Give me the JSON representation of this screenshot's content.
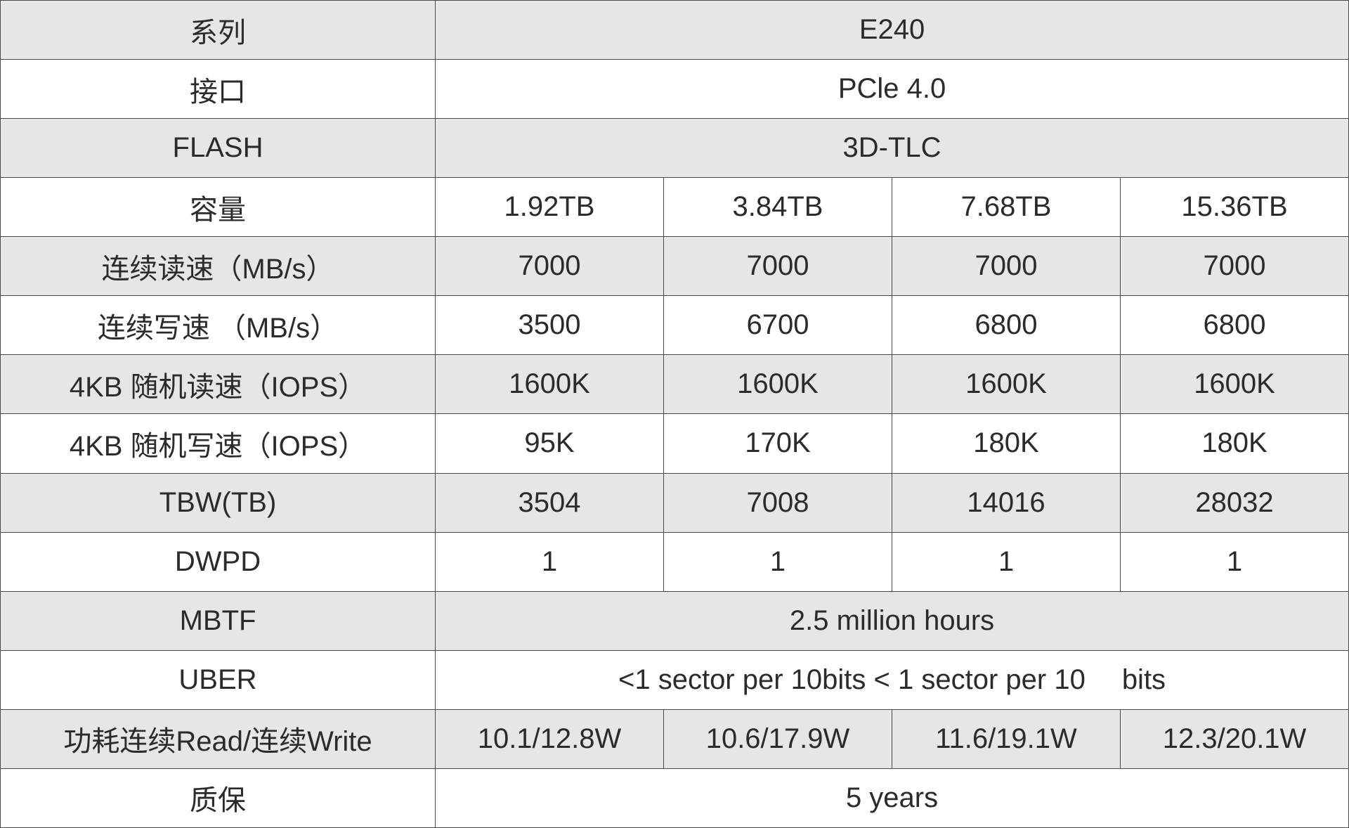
{
  "specs": {
    "series": {
      "label": "系列",
      "value": "E240"
    },
    "interface": {
      "label": "接口",
      "value": "PCle 4.0"
    },
    "flash": {
      "label": "FLASH",
      "value": "3D-TLC"
    },
    "capacity": {
      "label": "容量",
      "values": [
        "1.92TB",
        "3.84TB",
        "7.68TB",
        "15.36TB"
      ]
    },
    "seq_read": {
      "label": "连续读速（MB/s）",
      "values": [
        "7000",
        "7000",
        "7000",
        "7000"
      ]
    },
    "seq_write": {
      "label": "连续写速 （MB/s）",
      "values": [
        "3500",
        "6700",
        "6800",
        "6800"
      ]
    },
    "rand_read": {
      "label": "4KB 随机读速（IOPS）",
      "values": [
        "1600K",
        "1600K",
        "1600K",
        "1600K"
      ]
    },
    "rand_write": {
      "label": "4KB 随机写速（IOPS）",
      "values": [
        "95K",
        "170K",
        "180K",
        "180K"
      ]
    },
    "tbw": {
      "label": "TBW(TB)",
      "values": [
        "3504",
        "7008",
        "14016",
        "28032"
      ]
    },
    "dwpd": {
      "label": "DWPD",
      "values": [
        "1",
        "1",
        "1",
        "1"
      ]
    },
    "mbtf": {
      "label": "MBTF",
      "value": "2.5 million hours"
    },
    "uber": {
      "label": "UBER",
      "value_part1": "<1 sector per 10bits  < 1 sector per 10",
      "value_part2": "bits"
    },
    "power": {
      "label": "功耗连续Read/连续Write",
      "values": [
        "10.1/12.8W",
        "10.6/17.9W",
        "11.6/19.1W",
        "12.3/20.1W"
      ]
    },
    "warranty": {
      "label": "质保",
      "value": "5 years"
    }
  },
  "colors": {
    "shade": "#e6e6e6",
    "plain": "#ffffff",
    "border": "#4a4a4a",
    "text": "#2b2b2b"
  }
}
